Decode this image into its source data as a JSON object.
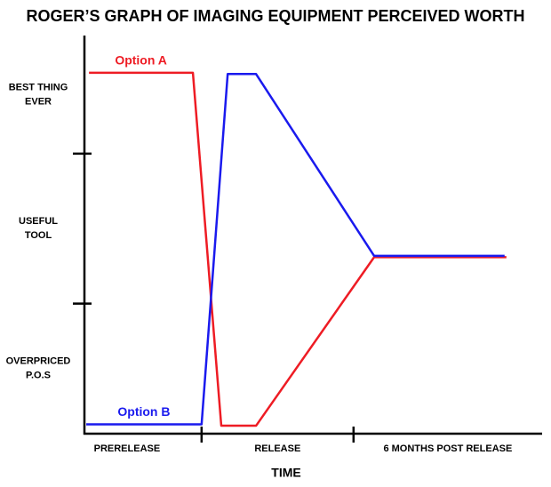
{
  "chart_data": {
    "type": "line",
    "title": "ROGER’S GRAPH OF IMAGING EQUIPMENT PERCEIVED WORTH",
    "x_axis_label": "TIME",
    "xlim": [
      0,
      100
    ],
    "xticks": [
      25.6,
      58.8
    ],
    "ylim": [
      0,
      3
    ],
    "yticks": [
      0.98,
      2.11
    ],
    "x_labels": [
      "PRERELEASE",
      "RELEASE",
      "6 MONTHS POST RELEASE"
    ],
    "y_labels": [
      [
        "OVERPRICED",
        "P.O.S"
      ],
      [
        "USEFUL",
        "TOOL"
      ],
      [
        "BEST THING",
        "EVER"
      ]
    ],
    "series": [
      {
        "name": "Option A",
        "color": "#ee1c24",
        "x": [
          1.0,
          23.7,
          29.9,
          37.5,
          63.3,
          92.2
        ],
        "values": [
          2.72,
          2.72,
          0.06,
          0.06,
          1.33,
          1.33
        ]
      },
      {
        "name": "Option B",
        "color": "#1a1aee",
        "x": [
          0.4,
          25.6,
          31.3,
          37.5,
          63.3,
          91.8
        ],
        "values": [
          0.07,
          0.07,
          2.71,
          2.71,
          1.34,
          1.34
        ]
      }
    ]
  }
}
